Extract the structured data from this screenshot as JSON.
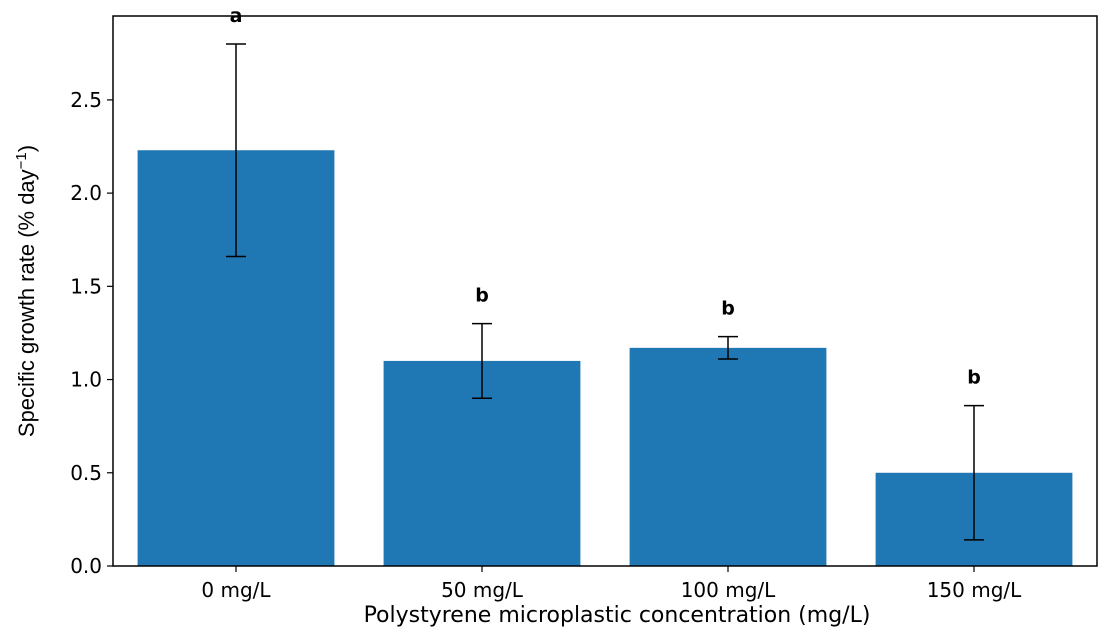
{
  "chart_data": {
    "type": "bar",
    "title": "",
    "xlabel": "Polystyrene microplastic concentration (mg/L)",
    "ylabel": {
      "main": "Specific growth rate (% day",
      "superscript": "−1",
      "close": ")"
    },
    "categories": [
      "0 mg/L",
      "50 mg/L",
      "100 mg/L",
      "150 mg/L"
    ],
    "values": [
      2.23,
      1.1,
      1.17,
      0.5
    ],
    "error_low": [
      1.66,
      0.9,
      1.11,
      0.14
    ],
    "error_high": [
      2.8,
      1.3,
      1.23,
      0.86
    ],
    "significance": [
      "a",
      "b",
      "b",
      "b"
    ],
    "ylim": [
      0,
      2.95
    ],
    "yticks": [
      "0.0",
      "0.5",
      "1.0",
      "1.5",
      "2.0",
      "2.5"
    ],
    "bar_color": "#1f77b4",
    "grid": false,
    "legend": "none"
  }
}
